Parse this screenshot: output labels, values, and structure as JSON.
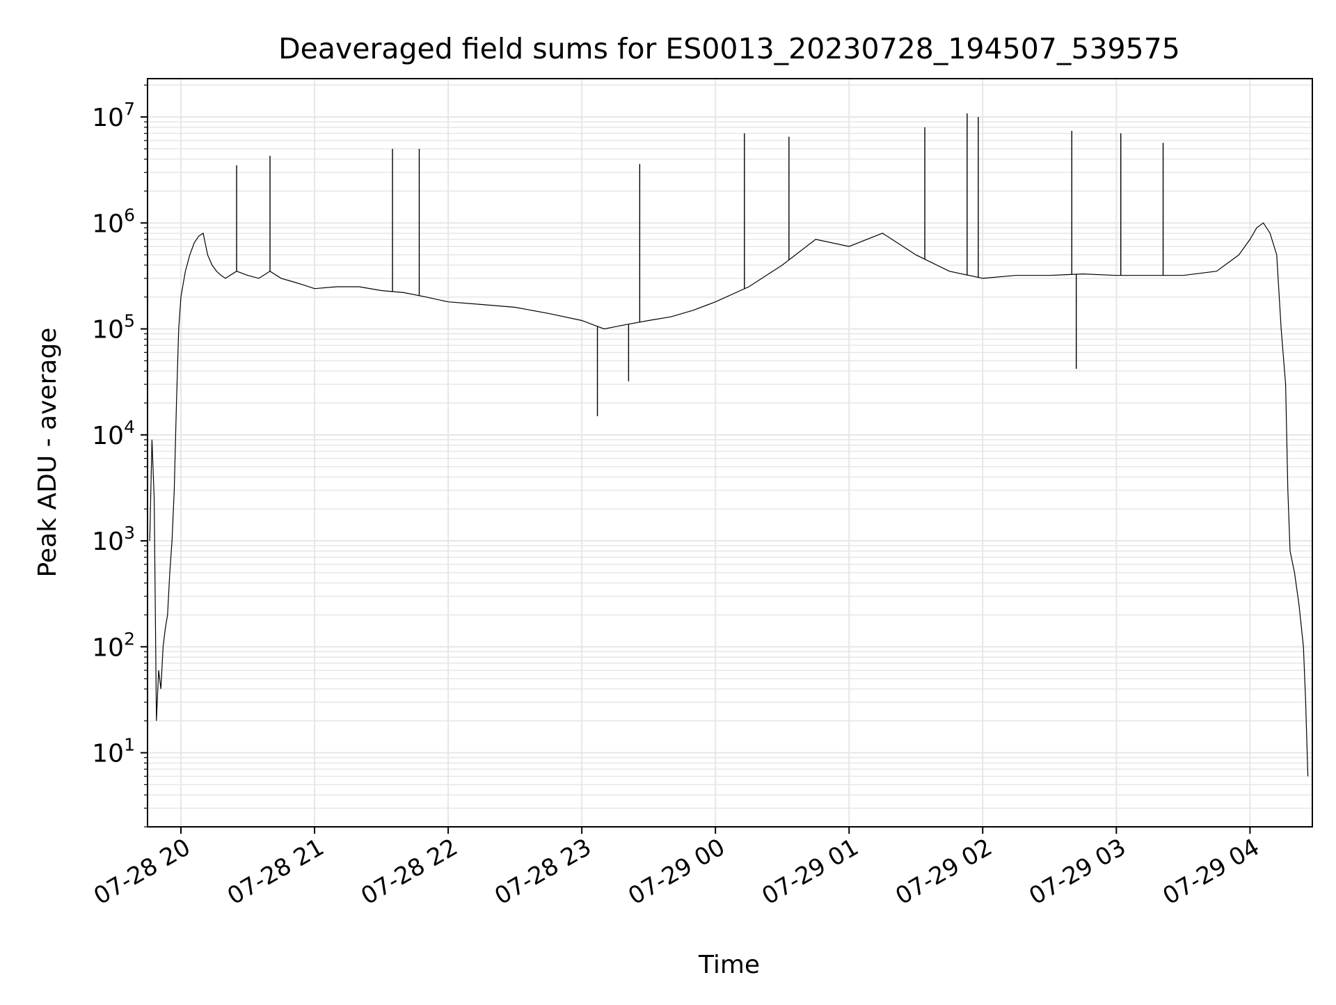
{
  "chart_data": {
    "type": "line",
    "title": "Deaveraged field sums for ES0013_20230728_194507_539575",
    "xlabel": "Time",
    "ylabel": "Peak ADU - average",
    "yscale": "log",
    "grid": true,
    "grid_minor": true,
    "legend": "none",
    "line_color": "#000000",
    "grid_color": "#e6e6e6",
    "xlim": [
      "2023-07-28 19:45",
      "2023-07-29 04:28"
    ],
    "ylim": [
      2,
      23000000
    ],
    "x_ticks": [
      {
        "value": "2023-07-28 20:00",
        "label": "07-28 20"
      },
      {
        "value": "2023-07-28 21:00",
        "label": "07-28 21"
      },
      {
        "value": "2023-07-28 22:00",
        "label": "07-28 22"
      },
      {
        "value": "2023-07-28 23:00",
        "label": "07-28 23"
      },
      {
        "value": "2023-07-29 00:00",
        "label": "07-29 00"
      },
      {
        "value": "2023-07-29 01:00",
        "label": "07-29 01"
      },
      {
        "value": "2023-07-29 02:00",
        "label": "07-29 02"
      },
      {
        "value": "2023-07-29 03:00",
        "label": "07-29 03"
      },
      {
        "value": "2023-07-29 04:00",
        "label": "07-29 04"
      }
    ],
    "y_ticks": [
      {
        "value": 10,
        "base": "10",
        "exp": "1"
      },
      {
        "value": 100,
        "base": "10",
        "exp": "2"
      },
      {
        "value": 1000,
        "base": "10",
        "exp": "3"
      },
      {
        "value": 10000,
        "base": "10",
        "exp": "4"
      },
      {
        "value": 100000,
        "base": "10",
        "exp": "5"
      },
      {
        "value": 1000000,
        "base": "10",
        "exp": "6"
      },
      {
        "value": 10000000,
        "base": "10",
        "exp": "7"
      }
    ],
    "series": [
      {
        "x": [
          "2023-07-28 19:46",
          "2023-07-28 19:47",
          "2023-07-28 19:48",
          "2023-07-28 19:49",
          "2023-07-28 19:50",
          "2023-07-28 19:51",
          "2023-07-28 19:52",
          "2023-07-28 19:53",
          "2023-07-28 19:54",
          "2023-07-28 19:55",
          "2023-07-28 19:56",
          "2023-07-28 19:57",
          "2023-07-28 19:58",
          "2023-07-28 19:59",
          "2023-07-28 20:00",
          "2023-07-28 20:02",
          "2023-07-28 20:04",
          "2023-07-28 20:06",
          "2023-07-28 20:08",
          "2023-07-28 20:10",
          "2023-07-28 20:12",
          "2023-07-28 20:14",
          "2023-07-28 20:16",
          "2023-07-28 20:18",
          "2023-07-28 20:20",
          "2023-07-28 20:25",
          "2023-07-28 20:30",
          "2023-07-28 20:35",
          "2023-07-28 20:40",
          "2023-07-28 20:45",
          "2023-07-28 20:50",
          "2023-07-28 20:55",
          "2023-07-28 21:00",
          "2023-07-28 21:10",
          "2023-07-28 21:20",
          "2023-07-28 21:30",
          "2023-07-28 21:40",
          "2023-07-28 21:50",
          "2023-07-28 22:00",
          "2023-07-28 22:15",
          "2023-07-28 22:30",
          "2023-07-28 22:45",
          "2023-07-28 23:00",
          "2023-07-28 23:10",
          "2023-07-28 23:20",
          "2023-07-28 23:30",
          "2023-07-28 23:40",
          "2023-07-28 23:50",
          "2023-07-29 00:00",
          "2023-07-29 00:15",
          "2023-07-29 00:30",
          "2023-07-29 00:45",
          "2023-07-29 01:00",
          "2023-07-29 01:15",
          "2023-07-29 01:30",
          "2023-07-29 01:45",
          "2023-07-29 02:00",
          "2023-07-29 02:15",
          "2023-07-29 02:30",
          "2023-07-29 02:45",
          "2023-07-29 03:00",
          "2023-07-29 03:15",
          "2023-07-29 03:30",
          "2023-07-29 03:45",
          "2023-07-29 03:55",
          "2023-07-29 04:00",
          "2023-07-29 04:03",
          "2023-07-29 04:06",
          "2023-07-29 04:09",
          "2023-07-29 04:12",
          "2023-07-29 04:14",
          "2023-07-29 04:16",
          "2023-07-29 04:17",
          "2023-07-29 04:18",
          "2023-07-29 04:20",
          "2023-07-29 04:22",
          "2023-07-29 04:24",
          "2023-07-29 04:25",
          "2023-07-29 04:26"
        ],
        "y": [
          1000,
          9000,
          2500,
          20,
          60,
          40,
          100,
          150,
          200,
          500,
          1000,
          3000,
          20000,
          100000,
          200000,
          350000,
          500000,
          650000,
          750000,
          800000,
          500000,
          400000,
          350000,
          320000,
          300000,
          350000,
          320000,
          300000,
          350000,
          300000,
          280000,
          260000,
          240000,
          250000,
          250000,
          230000,
          220000,
          200000,
          180000,
          170000,
          160000,
          140000,
          120000,
          100000,
          110000,
          120000,
          130000,
          150000,
          180000,
          250000,
          400000,
          700000,
          600000,
          800000,
          500000,
          350000,
          300000,
          320000,
          320000,
          330000,
          320000,
          320000,
          320000,
          350000,
          500000,
          700000,
          900000,
          1000000,
          800000,
          500000,
          100000,
          30000,
          3000,
          800,
          500,
          250,
          100,
          30,
          6
        ],
        "spikes": [
          {
            "x": "2023-07-28 20:25",
            "y": 3500000
          },
          {
            "x": "2023-07-28 20:40",
            "y": 4300000
          },
          {
            "x": "2023-07-28 21:35",
            "y": 5000000
          },
          {
            "x": "2023-07-28 21:47",
            "y": 5000000
          },
          {
            "x": "2023-07-28 23:26",
            "y": 3600000
          },
          {
            "x": "2023-07-29 00:13",
            "y": 7000000
          },
          {
            "x": "2023-07-29 00:33",
            "y": 6500000
          },
          {
            "x": "2023-07-29 01:34",
            "y": 8000000
          },
          {
            "x": "2023-07-29 01:53",
            "y": 10800000
          },
          {
            "x": "2023-07-29 01:58",
            "y": 10000000
          },
          {
            "x": "2023-07-29 02:40",
            "y": 7400000
          },
          {
            "x": "2023-07-29 03:02",
            "y": 7000000
          },
          {
            "x": "2023-07-29 03:21",
            "y": 5700000
          },
          {
            "x": "2023-07-28 23:07",
            "y": 15000
          },
          {
            "x": "2023-07-28 23:21",
            "y": 32000
          },
          {
            "x": "2023-07-29 02:42",
            "y": 42000
          }
        ]
      }
    ]
  }
}
